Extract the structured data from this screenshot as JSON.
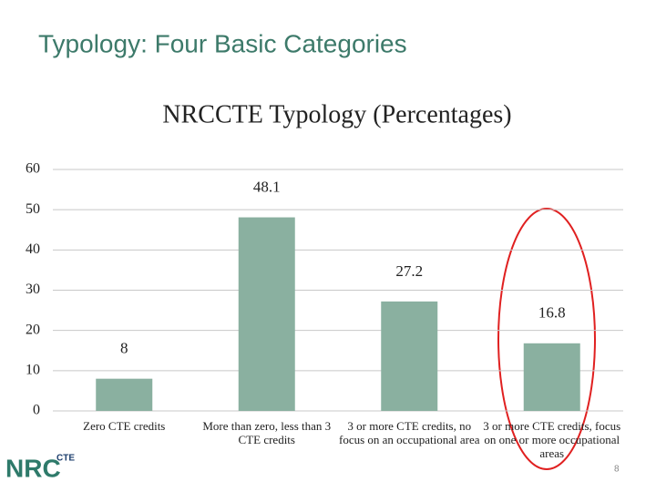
{
  "slide_title": "Typology: Four Basic Categories",
  "chart_data": {
    "type": "bar",
    "title": "NRCCTE Typology (Percentages)",
    "categories": [
      "Zero CTE credits",
      "More than zero, less than 3 CTE credits",
      "3 or more CTE credits, no focus on an occupational area",
      "3 or more CTE credits, focus on one or more occupational areas"
    ],
    "values": [
      8,
      48.1,
      27.2,
      16.8
    ],
    "color": "#8ab0a0",
    "ylim": [
      0,
      60
    ],
    "yticks": [
      0,
      10,
      20,
      30,
      40,
      50,
      60
    ],
    "grid": true
  },
  "logo": {
    "main": "NRC",
    "sub": "CTE"
  },
  "page_number": "8"
}
